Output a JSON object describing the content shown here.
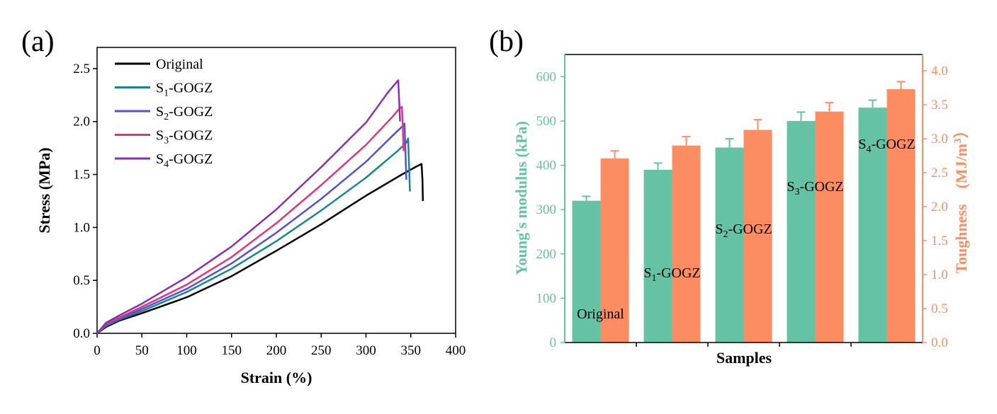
{
  "chart_data": [
    {
      "panel_label": "(a)",
      "type": "line",
      "xlabel": "Strain (%)",
      "ylabel": "Stress (MPa)",
      "xlim": [
        0,
        400
      ],
      "ylim": [
        0,
        2.7
      ],
      "xticks": [
        "0",
        "50",
        "100",
        "150",
        "200",
        "250",
        "300",
        "350",
        "400"
      ],
      "yticks": [
        "0.0",
        "0.5",
        "1.0",
        "1.5",
        "2.0",
        "2.5"
      ],
      "legend_position": "top-left",
      "series": [
        {
          "name": "Original",
          "sub": "",
          "color": "#000000",
          "x": [
            0,
            10,
            25,
            50,
            100,
            150,
            200,
            250,
            300,
            340,
            355,
            362,
            363,
            363.5
          ],
          "y": [
            0,
            0.06,
            0.12,
            0.19,
            0.34,
            0.54,
            0.78,
            1.03,
            1.3,
            1.5,
            1.57,
            1.6,
            1.45,
            1.25
          ]
        },
        {
          "name": "GOGZ",
          "sub": "1",
          "color": "#17868e",
          "x": [
            0,
            10,
            25,
            50,
            100,
            150,
            200,
            250,
            300,
            335,
            345,
            347,
            348,
            349
          ],
          "y": [
            0,
            0.07,
            0.13,
            0.21,
            0.39,
            0.61,
            0.87,
            1.16,
            1.47,
            1.72,
            1.8,
            1.84,
            1.6,
            1.34
          ]
        },
        {
          "name": "GOGZ",
          "sub": "2",
          "color": "#5252d9",
          "x": [
            0,
            10,
            25,
            50,
            100,
            150,
            200,
            250,
            300,
            330,
            340,
            343,
            344,
            345
          ],
          "y": [
            0,
            0.08,
            0.14,
            0.23,
            0.42,
            0.66,
            0.95,
            1.27,
            1.62,
            1.87,
            1.95,
            1.98,
            1.72,
            1.45
          ]
        },
        {
          "name": "GOGZ",
          "sub": "3",
          "color": "#e1347b",
          "x": [
            0,
            10,
            25,
            50,
            100,
            150,
            200,
            250,
            300,
            330,
            337,
            340,
            341,
            342
          ],
          "y": [
            0,
            0.09,
            0.15,
            0.25,
            0.46,
            0.72,
            1.04,
            1.4,
            1.78,
            2.05,
            2.12,
            2.14,
            1.95,
            1.72
          ]
        },
        {
          "name": "GOGZ",
          "sub": "4",
          "color": "#8a2fb0",
          "x": [
            0,
            10,
            25,
            50,
            100,
            150,
            200,
            250,
            300,
            325,
            333,
            336,
            337,
            338
          ],
          "y": [
            0,
            0.1,
            0.17,
            0.28,
            0.53,
            0.82,
            1.17,
            1.57,
            1.99,
            2.28,
            2.36,
            2.39,
            2.2,
            2.0
          ]
        }
      ]
    },
    {
      "panel_label": "(b)",
      "type": "bar",
      "xlabel": "Samples",
      "ylabel_left": "Young's modulus (kPa)",
      "ylabel_right": "Toughness　(MJ/m³）",
      "ylim_left": [
        0,
        650
      ],
      "ylim_right": [
        0,
        4.24
      ],
      "yticks_left": [
        "0",
        "100",
        "200",
        "300",
        "400",
        "500",
        "600"
      ],
      "yticks_right": [
        "0.0",
        "0.5",
        "1.0",
        "1.5",
        "2.0",
        "2.5",
        "3.0",
        "3.5",
        "4.0"
      ],
      "left_axis_color": "#66c2a5",
      "right_axis_color": "#fc8d62",
      "categories": [
        {
          "pre": "Original",
          "sub": "",
          "post": ""
        },
        {
          "pre": "S",
          "sub": "1",
          "post": "-GOGZ"
        },
        {
          "pre": "S",
          "sub": "2",
          "post": "-GOGZ"
        },
        {
          "pre": "S",
          "sub": "3",
          "post": "-GOGZ"
        },
        {
          "pre": "S",
          "sub": "4",
          "post": "-GOGZ"
        }
      ],
      "youngs_modulus": [
        320,
        390,
        440,
        500,
        530
      ],
      "youngs_modulus_err": [
        10,
        15,
        20,
        20,
        17
      ],
      "toughness": [
        2.71,
        2.9,
        3.13,
        3.4,
        3.73
      ],
      "toughness_err": [
        0.11,
        0.13,
        0.15,
        0.13,
        0.11
      ]
    }
  ]
}
